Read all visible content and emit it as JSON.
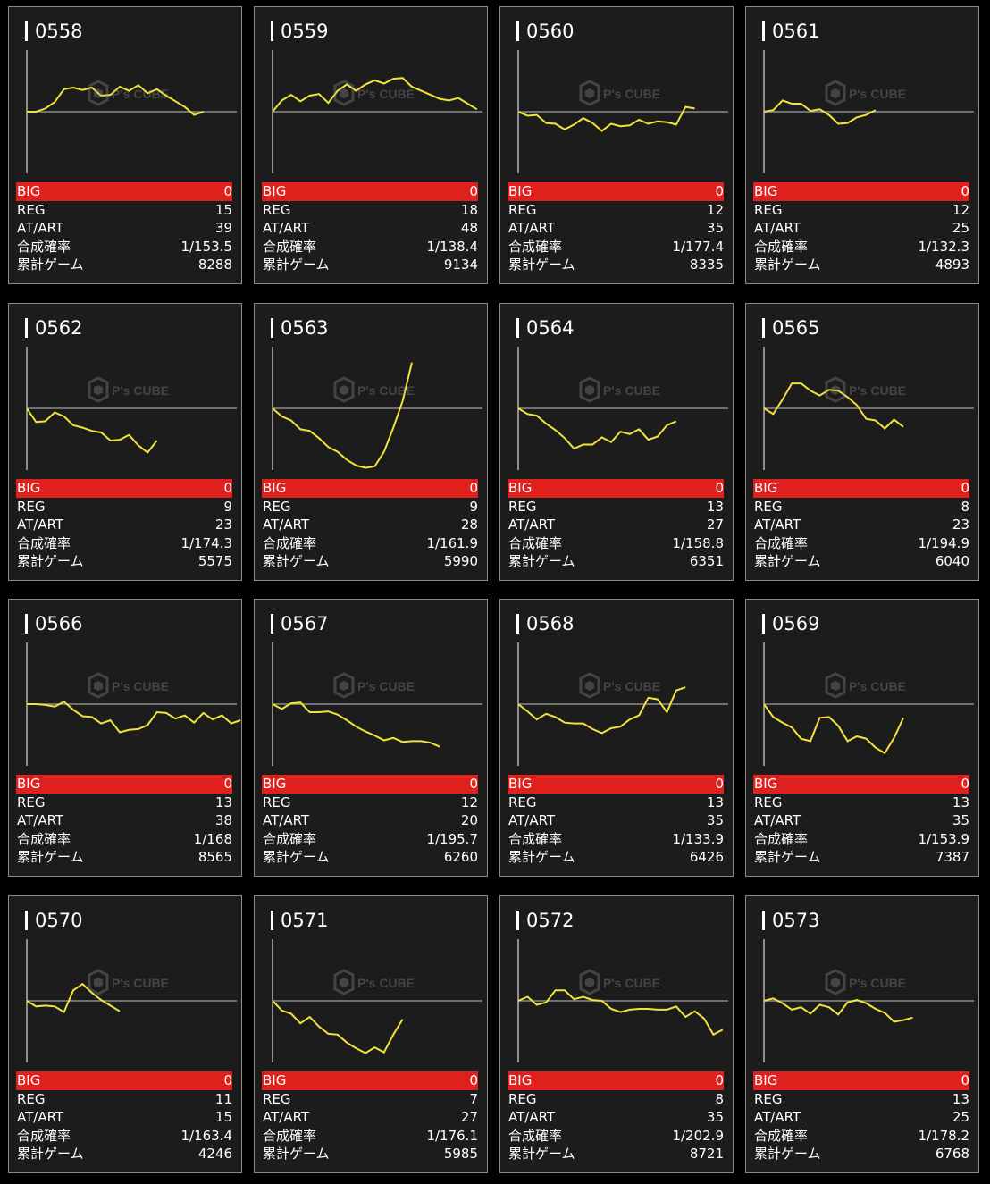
{
  "labels": {
    "big": "BIG",
    "reg": "REG",
    "at": "AT/ART",
    "prob": "合成確率",
    "games": "累計ゲーム"
  },
  "colors": {
    "background": "#000000",
    "card": "#1c1c1c",
    "card_border": "#8a8a8a",
    "big_row": "#e0201c",
    "line": "#f2e33a",
    "baseline": "#8c8c8c",
    "axis": "#ffffff"
  },
  "watermark": {
    "icon": "cube-logo-icon",
    "text": "P's CUBE"
  },
  "machines": [
    {
      "id": "0558",
      "big": "0",
      "reg": "15",
      "at": "39",
      "prob": "1/153.5",
      "games": "8288",
      "trend": [
        0,
        0,
        0.4,
        1.2,
        2.8,
        3.0,
        2.7,
        3.0,
        2.0,
        2.1,
        3.1,
        2.6,
        3.3,
        2.3,
        2.8,
        2.0,
        1.3,
        0.6,
        -0.4,
        0
      ]
    },
    {
      "id": "0559",
      "big": "0",
      "reg": "18",
      "at": "48",
      "prob": "1/138.4",
      "games": "9134",
      "trend": [
        0,
        1.4,
        2.1,
        1.3,
        2.0,
        2.2,
        1.1,
        2.6,
        3.4,
        2.6,
        3.4,
        3.9,
        3.5,
        4.1,
        4.2,
        3.1,
        2.6,
        2.1,
        1.6,
        1.4,
        1.7,
        1.0,
        0.3
      ]
    },
    {
      "id": "0560",
      "big": "0",
      "reg": "12",
      "at": "35",
      "prob": "1/177.4",
      "games": "8335",
      "trend": [
        0,
        -0.5,
        -0.4,
        -1.4,
        -1.5,
        -2.2,
        -1.6,
        -0.8,
        -1.4,
        -2.4,
        -1.5,
        -1.8,
        -1.7,
        -1.0,
        -1.5,
        -1.2,
        -1.3,
        -1.6,
        0.6,
        0.4
      ]
    },
    {
      "id": "0561",
      "big": "0",
      "reg": "12",
      "at": "25",
      "prob": "1/132.3",
      "games": "4893",
      "trend": [
        0,
        0.2,
        1.4,
        1.0,
        1.0,
        0.1,
        0.3,
        -0.4,
        -1.5,
        -1.4,
        -0.7,
        -0.4,
        0.2
      ]
    },
    {
      "id": "0562",
      "big": "0",
      "reg": "9",
      "at": "23",
      "prob": "1/174.3",
      "games": "5575",
      "trend": [
        0,
        -1.7,
        -1.6,
        -0.5,
        -1.0,
        -2.1,
        -2.4,
        -2.8,
        -3.0,
        -4.0,
        -3.9,
        -3.3,
        -4.6,
        -5.5,
        -4.0
      ]
    },
    {
      "id": "0563",
      "big": "0",
      "reg": "9",
      "at": "28",
      "prob": "1/161.9",
      "games": "5990",
      "trend": [
        0,
        -1.0,
        -1.5,
        -2.6,
        -2.8,
        -3.7,
        -4.8,
        -5.4,
        -6.4,
        -7.1,
        -7.4,
        -7.2,
        -5.4,
        -2.4,
        0.9,
        5.7
      ]
    },
    {
      "id": "0564",
      "big": "0",
      "reg": "13",
      "at": "27",
      "prob": "1/158.8",
      "games": "6351",
      "trend": [
        0,
        -0.7,
        -0.9,
        -1.9,
        -2.7,
        -3.7,
        -5.0,
        -4.5,
        -4.5,
        -3.6,
        -4.2,
        -2.9,
        -3.2,
        -2.6,
        -3.9,
        -3.5,
        -2.1,
        -1.6
      ]
    },
    {
      "id": "0565",
      "big": "0",
      "reg": "8",
      "at": "23",
      "prob": "1/194.9",
      "games": "6040",
      "trend": [
        0,
        -0.7,
        1.1,
        3.1,
        3.1,
        2.2,
        1.6,
        2.3,
        2.2,
        1.4,
        0.4,
        -1.3,
        -1.5,
        -2.5,
        -1.4,
        -2.3
      ]
    },
    {
      "id": "0566",
      "big": "0",
      "reg": "13",
      "at": "38",
      "prob": "1/168",
      "games": "8565",
      "trend": [
        0,
        0,
        -0.1,
        -0.3,
        0.3,
        -0.7,
        -1.5,
        -1.6,
        -2.4,
        -2.0,
        -3.5,
        -3.2,
        -3.1,
        -2.6,
        -1.0,
        -1.1,
        -1.8,
        -1.4,
        -2.3,
        -1.1,
        -1.9,
        -1.4,
        -2.4,
        -2.0
      ]
    },
    {
      "id": "0567",
      "big": "0",
      "reg": "12",
      "at": "20",
      "prob": "1/195.7",
      "games": "6260",
      "trend": [
        0,
        -0.6,
        0.1,
        0.2,
        -1.0,
        -1.0,
        -0.9,
        -1.3,
        -2.0,
        -2.8,
        -3.4,
        -3.9,
        -4.5,
        -4.2,
        -4.7,
        -4.6,
        -4.6,
        -4.8,
        -5.3
      ]
    },
    {
      "id": "0568",
      "big": "0",
      "reg": "13",
      "at": "35",
      "prob": "1/133.9",
      "games": "6426",
      "trend": [
        0,
        -0.9,
        -1.9,
        -1.2,
        -1.6,
        -2.3,
        -2.4,
        -2.4,
        -3.1,
        -3.6,
        -3.0,
        -2.8,
        -1.9,
        -1.4,
        0.8,
        0.6,
        -1.0,
        1.7,
        2.1
      ]
    },
    {
      "id": "0569",
      "big": "0",
      "reg": "13",
      "at": "35",
      "prob": "1/153.9",
      "games": "7387",
      "trend": [
        0,
        -1.6,
        -2.3,
        -2.9,
        -4.3,
        -4.6,
        -1.7,
        -1.6,
        -2.7,
        -4.6,
        -4.0,
        -4.3,
        -5.4,
        -6.1,
        -4.2,
        -1.7
      ]
    },
    {
      "id": "0570",
      "big": "0",
      "reg": "11",
      "at": "15",
      "prob": "1/163.4",
      "games": "4246",
      "trend": [
        0,
        -0.7,
        -0.6,
        -0.7,
        -1.4,
        1.3,
        2.1,
        1.0,
        0.1,
        -0.6,
        -1.3
      ]
    },
    {
      "id": "0571",
      "big": "0",
      "reg": "7",
      "at": "27",
      "prob": "1/176.1",
      "games": "5985",
      "trend": [
        0,
        -1.2,
        -1.6,
        -2.8,
        -2.0,
        -3.2,
        -4.1,
        -4.2,
        -5.2,
        -5.9,
        -6.5,
        -5.8,
        -6.4,
        -4.2,
        -2.3
      ]
    },
    {
      "id": "0572",
      "big": "0",
      "reg": "8",
      "at": "35",
      "prob": "1/202.9",
      "games": "8721",
      "trend": [
        0,
        0.5,
        -0.5,
        -0.2,
        1.3,
        1.3,
        0.2,
        0.5,
        0.1,
        0,
        -1.0,
        -1.4,
        -1.1,
        -1.0,
        -1.0,
        -1.1,
        -1.1,
        -0.7,
        -2.0,
        -1.3,
        -2.2,
        -4.2,
        -3.6
      ]
    },
    {
      "id": "0573",
      "big": "0",
      "reg": "13",
      "at": "25",
      "prob": "1/178.2",
      "games": "6768",
      "trend": [
        0,
        0.3,
        -0.3,
        -1.1,
        -0.8,
        -1.6,
        -0.5,
        -0.8,
        -1.7,
        -0.2,
        0.1,
        -0.3,
        -1.0,
        -1.5,
        -2.6,
        -2.4,
        -2.1
      ]
    }
  ]
}
